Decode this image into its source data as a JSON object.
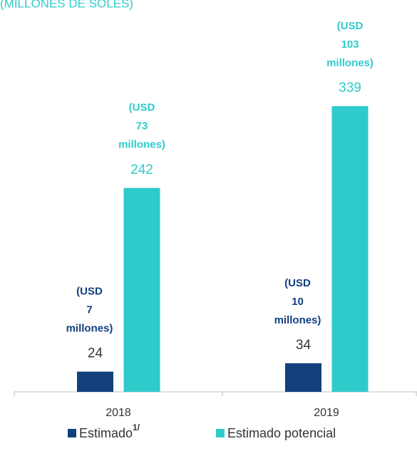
{
  "chart_data": {
    "type": "bar",
    "title": "(MILLONES DE SOLES)",
    "categories": [
      "2018",
      "2019"
    ],
    "series": [
      {
        "name": "Estimado",
        "legend_superscript": "1/",
        "color": "#123f7e",
        "values": [
          24,
          34
        ],
        "annotations": [
          [
            "(USD",
            "7",
            "millones)"
          ],
          [
            "(USD",
            "10",
            "millones)"
          ]
        ]
      },
      {
        "name": "Estimado potencial",
        "color": "#2fcbcb",
        "values": [
          242,
          339
        ],
        "annotations": [
          [
            "(USD",
            "73",
            "millones)"
          ],
          [
            "(USD",
            "103",
            "millones)"
          ]
        ]
      }
    ]
  }
}
